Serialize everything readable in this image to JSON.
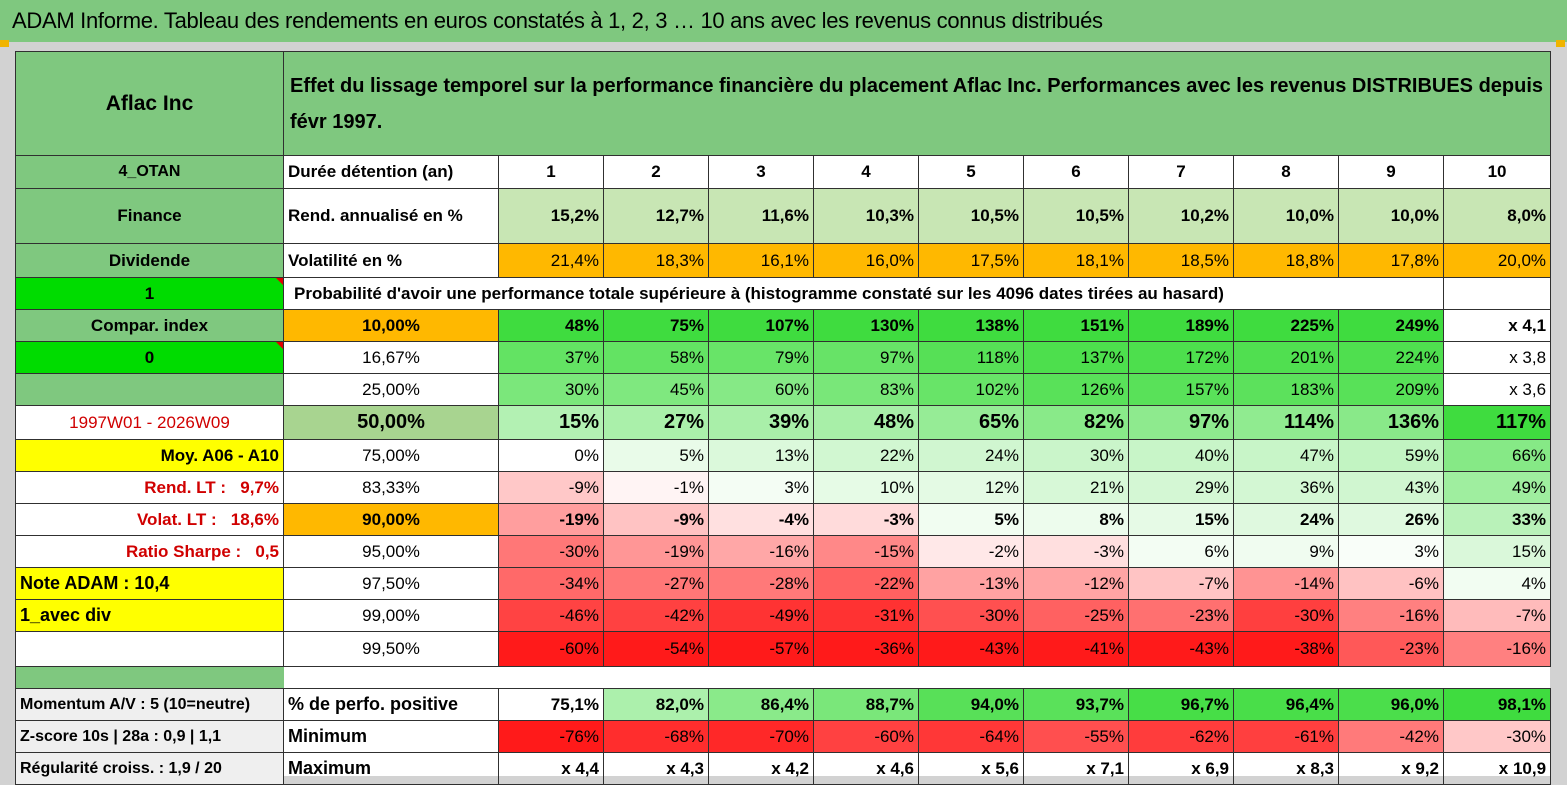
{
  "title": "ADAM Informe. Tableau des rendements en euros constatés à 1, 2, 3 … 10 ans avec les revenus connus distribués",
  "header": {
    "company": "Aflac Inc",
    "description": "Effet du lissage temporel sur la performance financière du placement Aflac Inc. Performances avec les revenus DISTRIBUES depuis févr 1997."
  },
  "left": {
    "code": "4_OTAN",
    "sector": "Finance",
    "type": "Dividende",
    "flag1": "1",
    "compar_index": "Compar. index",
    "flag0": "0",
    "period": "1997W01 - 2026W09",
    "moy": "Moy. A06 - A10",
    "rend_lt_label": "Rend. LT :",
    "rend_lt_value": "9,7%",
    "volat_lt_label": "Volat. LT :",
    "volat_lt_value": "18,6%",
    "sharpe_label": "Ratio Sharpe :",
    "sharpe_value": "0,5",
    "note_adam": "Note ADAM : 10,4",
    "avec_div": "1_avec div",
    "momentum": "Momentum A/V : 5 (10=neutre)",
    "zscore": "Z-score 10s | 28a : 0,9 | 1,1",
    "regularite": "Régularité croiss. : 1,9 / 20"
  },
  "labels": {
    "duree": "Durée détention (an)",
    "rend": "Rend. annualisé en %",
    "volat": "Volatilité en %",
    "proba": "Probabilité d'avoir une performance totale supérieure à (histogramme constaté sur les 4096 dates tirées au hasard)",
    "pct_positive": "% de perfo. positive",
    "minimum": "Minimum",
    "maximum": "Maximum"
  },
  "years": [
    "1",
    "2",
    "3",
    "4",
    "5",
    "6",
    "7",
    "8",
    "9",
    "10"
  ],
  "rend_annualise": [
    "15,2%",
    "12,7%",
    "11,6%",
    "10,3%",
    "10,5%",
    "10,5%",
    "10,2%",
    "10,0%",
    "10,0%",
    "8,0%"
  ],
  "volatilite": [
    "21,4%",
    "18,3%",
    "16,1%",
    "16,0%",
    "17,5%",
    "18,1%",
    "18,5%",
    "18,8%",
    "17,8%",
    "20,0%"
  ],
  "probability_rows": [
    {
      "prob": "10,00%",
      "values": [
        "48%",
        "75%",
        "107%",
        "130%",
        "138%",
        "151%",
        "189%",
        "225%",
        "249%",
        "x 4,1"
      ]
    },
    {
      "prob": "16,67%",
      "values": [
        "37%",
        "58%",
        "79%",
        "97%",
        "118%",
        "137%",
        "172%",
        "201%",
        "224%",
        "x 3,8"
      ]
    },
    {
      "prob": "25,00%",
      "values": [
        "30%",
        "45%",
        "60%",
        "83%",
        "102%",
        "126%",
        "157%",
        "183%",
        "209%",
        "x 3,6"
      ]
    },
    {
      "prob": "50,00%",
      "values": [
        "15%",
        "27%",
        "39%",
        "48%",
        "65%",
        "82%",
        "97%",
        "114%",
        "136%",
        "117%"
      ]
    },
    {
      "prob": "75,00%",
      "values": [
        "0%",
        "5%",
        "13%",
        "22%",
        "24%",
        "30%",
        "40%",
        "47%",
        "59%",
        "66%"
      ]
    },
    {
      "prob": "83,33%",
      "values": [
        "-9%",
        "-1%",
        "3%",
        "10%",
        "12%",
        "21%",
        "29%",
        "36%",
        "43%",
        "49%"
      ]
    },
    {
      "prob": "90,00%",
      "values": [
        "-19%",
        "-9%",
        "-4%",
        "-3%",
        "5%",
        "8%",
        "15%",
        "24%",
        "26%",
        "33%"
      ]
    },
    {
      "prob": "95,00%",
      "values": [
        "-30%",
        "-19%",
        "-16%",
        "-15%",
        "-2%",
        "-3%",
        "6%",
        "9%",
        "3%",
        "15%"
      ]
    },
    {
      "prob": "97,50%",
      "values": [
        "-34%",
        "-27%",
        "-28%",
        "-22%",
        "-13%",
        "-12%",
        "-7%",
        "-14%",
        "-6%",
        "4%"
      ]
    },
    {
      "prob": "99,00%",
      "values": [
        "-46%",
        "-42%",
        "-49%",
        "-31%",
        "-30%",
        "-25%",
        "-23%",
        "-30%",
        "-16%",
        "-7%"
      ]
    },
    {
      "prob": "99,50%",
      "values": [
        "-60%",
        "-54%",
        "-57%",
        "-36%",
        "-43%",
        "-41%",
        "-43%",
        "-38%",
        "-23%",
        "-16%"
      ]
    }
  ],
  "pct_positive": [
    "75,1%",
    "82,0%",
    "86,4%",
    "88,7%",
    "94,0%",
    "93,7%",
    "96,7%",
    "96,4%",
    "96,0%",
    "98,1%"
  ],
  "minimum": [
    "-76%",
    "-68%",
    "-70%",
    "-60%",
    "-64%",
    "-55%",
    "-62%",
    "-61%",
    "-42%",
    "-30%"
  ],
  "maximum": [
    "x 4,4",
    "x 4,3",
    "x 4,2",
    "x 4,6",
    "x 5,6",
    "x 7,1",
    "x 6,9",
    "x 8,3",
    "x 9,2",
    "x 10,9"
  ],
  "colors": {
    "header_green": "#7fc87f",
    "bright_green": "#00dc00",
    "yellow": "#ffff00",
    "orange": "#ffb800",
    "light_green": "#c8e6b4",
    "positive_max": "#3fdc3f",
    "negative_max": "#ff1a1a",
    "label_red": "#d00000"
  }
}
